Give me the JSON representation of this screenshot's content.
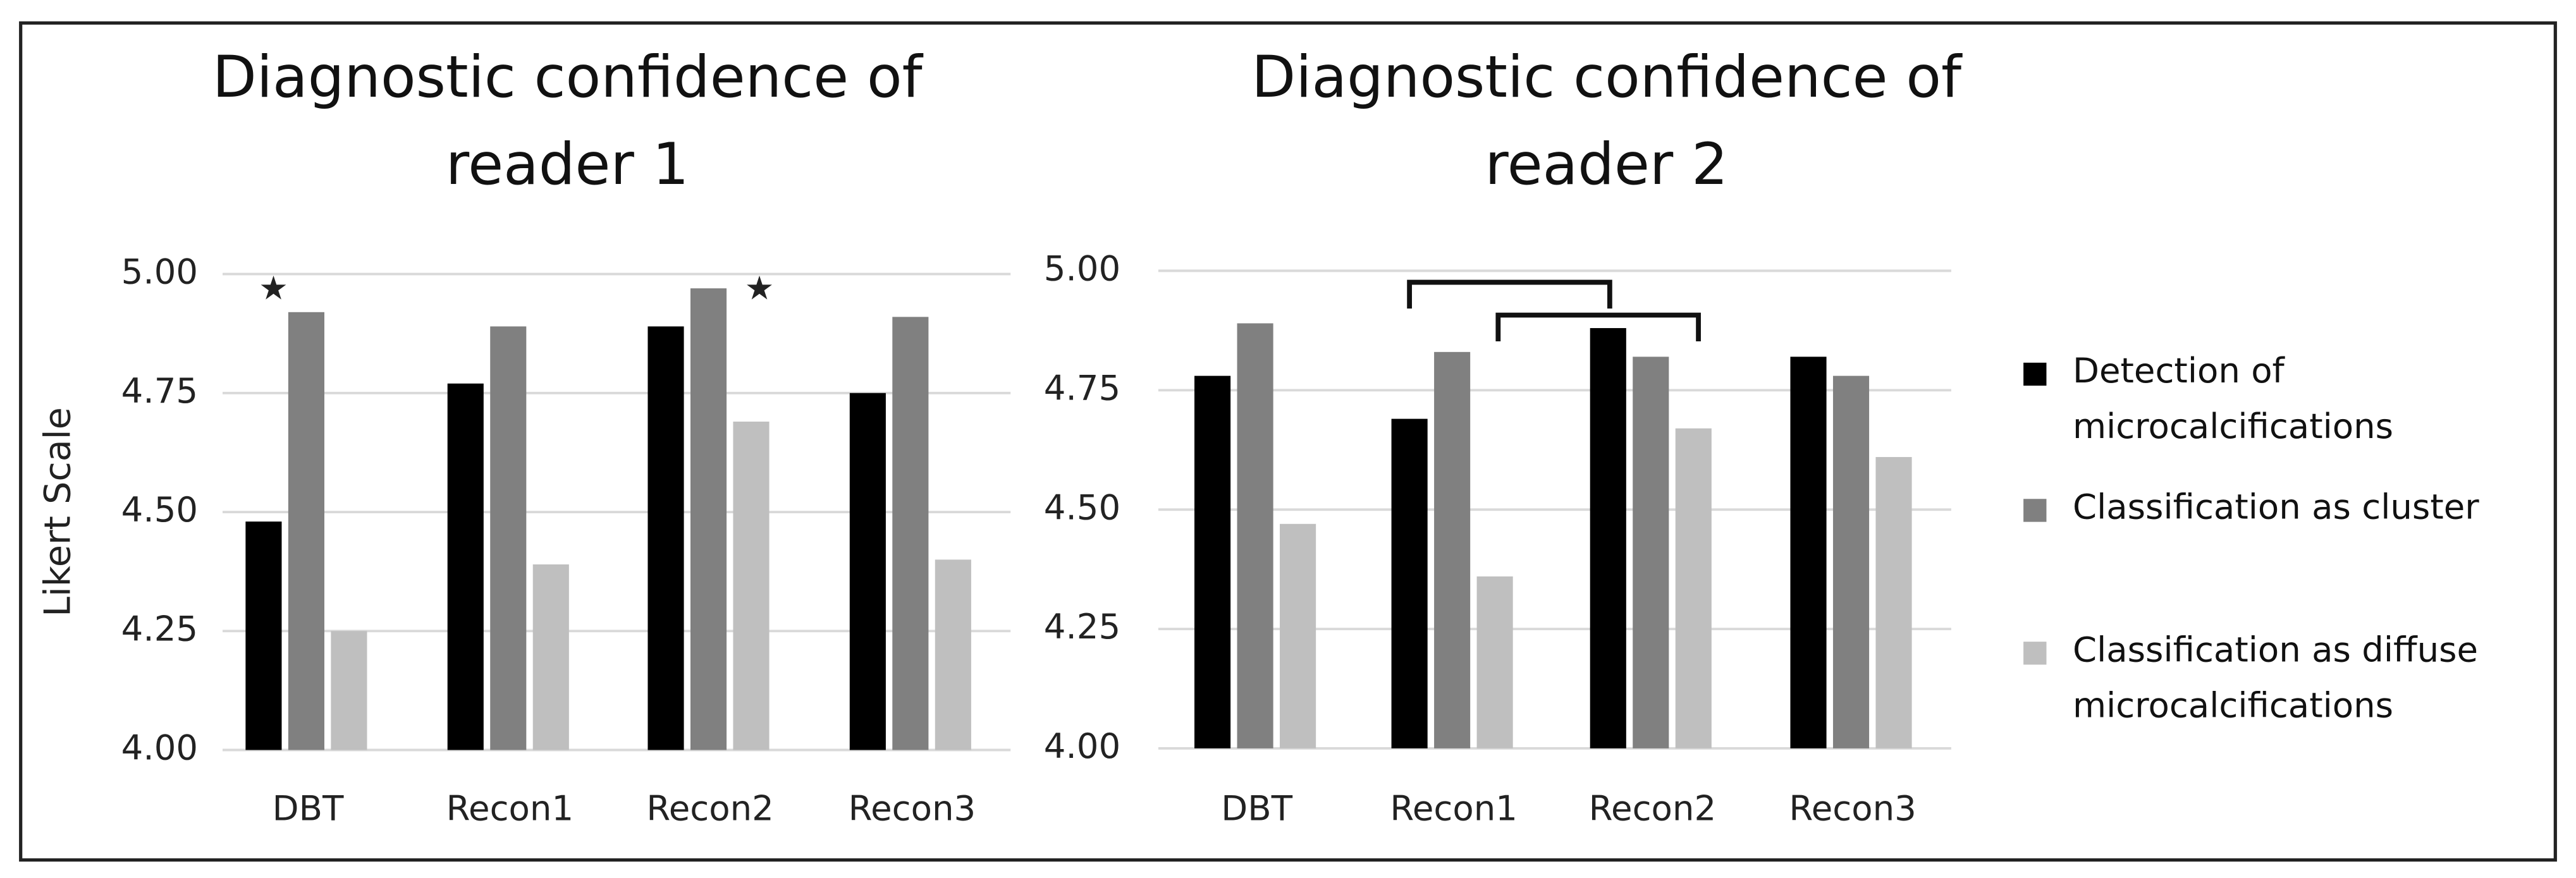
{
  "chart_data": [
    {
      "type": "bar",
      "title": "Diagnostic confidence of reader 1",
      "y_label": "Likert Scale",
      "categories": [
        "DBT",
        "Recon1",
        "Recon2",
        "Recon3"
      ],
      "series": [
        {
          "color": "#000000",
          "values": [
            4.48,
            4.77,
            4.89,
            4.75
          ]
        },
        {
          "color": "#808080",
          "values": [
            4.92,
            4.89,
            4.97,
            4.91
          ]
        },
        {
          "color": "#bfbfbf",
          "values": [
            4.25,
            4.39,
            4.69,
            4.4
          ]
        }
      ],
      "ylim": [
        4,
        5
      ],
      "yticks": [
        {
          "value": 4,
          "label": "4.00"
        },
        {
          "value": 4.25,
          "label": "4.25"
        },
        {
          "value": 4.5,
          "label": "4.50"
        },
        {
          "value": 4.75,
          "label": "4.75"
        },
        {
          "value": 5,
          "label": "5.00"
        }
      ],
      "grid": true,
      "annotations": [
        "★",
        "★"
      ]
    },
    {
      "type": "bar",
      "title": "Diagnostic confidence of reader 2",
      "categories": [
        "DBT",
        "Recon1",
        "Recon2",
        "Recon3"
      ],
      "series": [
        {
          "name": "Detection of microcalcifications",
          "color": "#000000",
          "values": [
            4.78,
            4.69,
            4.88,
            4.82
          ]
        },
        {
          "name": "Classification as cluster",
          "color": "#808080",
          "values": [
            4.89,
            4.83,
            4.82,
            4.78
          ]
        },
        {
          "name": "Classification as diffuse microcalcifications",
          "color": "#bfbfbf",
          "values": [
            4.47,
            4.36,
            4.67,
            4.61
          ]
        }
      ],
      "ylim": [
        4,
        5
      ],
      "yticks": [
        {
          "value": 4,
          "label": "4.00"
        },
        {
          "value": 4.25,
          "label": "4.25"
        },
        {
          "value": 4.5,
          "label": "4.50"
        },
        {
          "value": 4.75,
          "label": "4.75"
        },
        {
          "value": 5,
          "label": "5.00"
        }
      ],
      "grid": true,
      "legend": "right"
    }
  ]
}
